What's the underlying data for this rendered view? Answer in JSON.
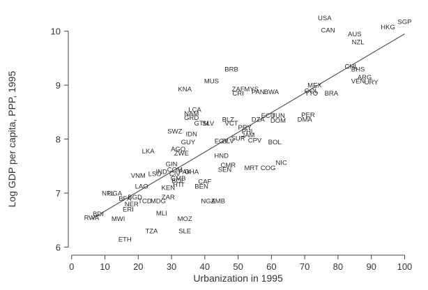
{
  "chart_data": {
    "type": "scatter",
    "xlabel": "Urbanization in 1995",
    "ylabel": "Log GDP per capita, PPP, 1995",
    "xlim": [
      -1,
      102
    ],
    "ylim": [
      5.85,
      10.5
    ],
    "xticks": [
      "0",
      "10",
      "20",
      "30",
      "40",
      "50",
      "60",
      "70",
      "80",
      "90",
      "100"
    ],
    "xtick_values": [
      0,
      10,
      20,
      30,
      40,
      50,
      60,
      70,
      80,
      90,
      100
    ],
    "yticks": [
      "6",
      "7",
      "8",
      "9",
      "10"
    ],
    "ytick_values": [
      6,
      7,
      8,
      9,
      10
    ],
    "grid": false,
    "marker": "text-label",
    "fit_line": {
      "x": [
        6,
        100
      ],
      "y": [
        6.52,
        9.95
      ]
    },
    "points": [
      {
        "label": "USA",
        "x": 76,
        "y": 10.25
      },
      {
        "label": "CAN",
        "x": 77,
        "y": 10.02
      },
      {
        "label": "AUS",
        "x": 85,
        "y": 9.95
      },
      {
        "label": "NZL",
        "x": 86,
        "y": 9.8
      },
      {
        "label": "HKG",
        "x": 95,
        "y": 10.08
      },
      {
        "label": "SGP",
        "x": 100,
        "y": 10.18
      },
      {
        "label": "CHL",
        "x": 84,
        "y": 9.35
      },
      {
        "label": "BHS",
        "x": 86,
        "y": 9.3
      },
      {
        "label": "ARG",
        "x": 88,
        "y": 9.15
      },
      {
        "label": "VEN",
        "x": 86,
        "y": 9.08
      },
      {
        "label": "URY",
        "x": 90,
        "y": 9.06
      },
      {
        "label": "BRA",
        "x": 78,
        "y": 8.85
      },
      {
        "label": "MEX",
        "x": 73,
        "y": 9.0
      },
      {
        "label": "GOL",
        "x": 72,
        "y": 8.9
      },
      {
        "label": "TTO",
        "x": 72,
        "y": 8.85
      },
      {
        "label": "PER",
        "x": 71,
        "y": 8.45
      },
      {
        "label": "DMA",
        "x": 70,
        "y": 8.37
      },
      {
        "label": "BRB",
        "x": 48,
        "y": 9.3
      },
      {
        "label": "MUS",
        "x": 42,
        "y": 9.08
      },
      {
        "label": "KNA",
        "x": 34,
        "y": 8.93
      },
      {
        "label": "ZAF",
        "x": 50,
        "y": 8.93
      },
      {
        "label": "MYS",
        "x": 54,
        "y": 8.93
      },
      {
        "label": "CRI",
        "x": 50,
        "y": 8.85
      },
      {
        "label": "PAN",
        "x": 56,
        "y": 8.88
      },
      {
        "label": "BWA",
        "x": 60,
        "y": 8.88
      },
      {
        "label": "LCA",
        "x": 37,
        "y": 8.55
      },
      {
        "label": "NAM",
        "x": 36,
        "y": 8.48
      },
      {
        "label": "GRD",
        "x": 36,
        "y": 8.4
      },
      {
        "label": "GTM",
        "x": 39,
        "y": 8.3
      },
      {
        "label": "SLV",
        "x": 41,
        "y": 8.3
      },
      {
        "label": "BLZ",
        "x": 47,
        "y": 8.37
      },
      {
        "label": "VCT",
        "x": 48,
        "y": 8.3
      },
      {
        "label": "DZA",
        "x": 56,
        "y": 8.37
      },
      {
        "label": "ECU",
        "x": 59,
        "y": 8.44
      },
      {
        "label": "TUN",
        "x": 62,
        "y": 8.44
      },
      {
        "label": "DOM",
        "x": 62,
        "y": 8.35
      },
      {
        "label": "PRY",
        "x": 52,
        "y": 8.22
      },
      {
        "label": "PHL",
        "x": 53,
        "y": 8.15
      },
      {
        "label": "JAM",
        "x": 53,
        "y": 8.08
      },
      {
        "label": "SUR",
        "x": 50,
        "y": 8.02
      },
      {
        "label": "CPV",
        "x": 55,
        "y": 7.98
      },
      {
        "label": "BOL",
        "x": 61,
        "y": 7.95
      },
      {
        "label": "SWZ",
        "x": 31,
        "y": 8.15
      },
      {
        "label": "IDN",
        "x": 36,
        "y": 8.1
      },
      {
        "label": "GUY",
        "x": 35,
        "y": 7.95
      },
      {
        "label": "EGY",
        "x": 45,
        "y": 7.97
      },
      {
        "label": "SLV",
        "x": 47,
        "y": 7.97
      },
      {
        "label": "LKA",
        "x": 23,
        "y": 7.78
      },
      {
        "label": "AGO",
        "x": 32,
        "y": 7.82
      },
      {
        "label": "ZWE",
        "x": 33,
        "y": 7.74
      },
      {
        "label": "HND",
        "x": 45,
        "y": 7.7
      },
      {
        "label": "NIC",
        "x": 63,
        "y": 7.57
      },
      {
        "label": "CMR",
        "x": 47,
        "y": 7.52
      },
      {
        "label": "SEN",
        "x": 46,
        "y": 7.44
      },
      {
        "label": "MRT",
        "x": 54,
        "y": 7.47
      },
      {
        "label": "COG",
        "x": 59,
        "y": 7.47
      },
      {
        "label": "GIN",
        "x": 30,
        "y": 7.54
      },
      {
        "label": "COM",
        "x": 31,
        "y": 7.44
      },
      {
        "label": "IND",
        "x": 27,
        "y": 7.4
      },
      {
        "label": "LSO",
        "x": 25,
        "y": 7.36
      },
      {
        "label": "CIV",
        "x": 31,
        "y": 7.36
      },
      {
        "label": "PAK",
        "x": 34,
        "y": 7.4
      },
      {
        "label": "GHA",
        "x": 36,
        "y": 7.4
      },
      {
        "label": "VNM",
        "x": 20,
        "y": 7.33
      },
      {
        "label": "GMB",
        "x": 32,
        "y": 7.28
      },
      {
        "label": "BOL",
        "x": 32,
        "y": 7.23
      },
      {
        "label": "HTI",
        "x": 32,
        "y": 7.16
      },
      {
        "label": "CAF",
        "x": 40,
        "y": 7.22
      },
      {
        "label": "BEN",
        "x": 39,
        "y": 7.13
      },
      {
        "label": "LAO",
        "x": 21,
        "y": 7.13
      },
      {
        "label": "KEN",
        "x": 29,
        "y": 7.1
      },
      {
        "label": "NPL",
        "x": 11,
        "y": 7.0
      },
      {
        "label": "UGA",
        "x": 13,
        "y": 7.0
      },
      {
        "label": "BFA",
        "x": 16,
        "y": 6.9
      },
      {
        "label": "BGD",
        "x": 19,
        "y": 6.93
      },
      {
        "label": "TCD",
        "x": 22,
        "y": 6.86
      },
      {
        "label": "MDG",
        "x": 26,
        "y": 6.86
      },
      {
        "label": "ZAR",
        "x": 29,
        "y": 6.93
      },
      {
        "label": "NER",
        "x": 18,
        "y": 6.8
      },
      {
        "label": "ERI",
        "x": 17,
        "y": 6.7
      },
      {
        "label": "NGA",
        "x": 41,
        "y": 6.86
      },
      {
        "label": "ZMB",
        "x": 44,
        "y": 6.86
      },
      {
        "label": "MLI",
        "x": 27,
        "y": 6.63
      },
      {
        "label": "BDI",
        "x": 8,
        "y": 6.62
      },
      {
        "label": "RWA",
        "x": 6,
        "y": 6.55
      },
      {
        "label": "MWI",
        "x": 14,
        "y": 6.53
      },
      {
        "label": "MOZ",
        "x": 34,
        "y": 6.53
      },
      {
        "label": "TZA",
        "x": 24,
        "y": 6.3
      },
      {
        "label": "SLE",
        "x": 34,
        "y": 6.3
      },
      {
        "label": "ETH",
        "x": 16,
        "y": 6.15
      }
    ]
  },
  "colors": {
    "text": "#2a2a2a",
    "axis": "#444444",
    "fit_line": "#555555"
  }
}
